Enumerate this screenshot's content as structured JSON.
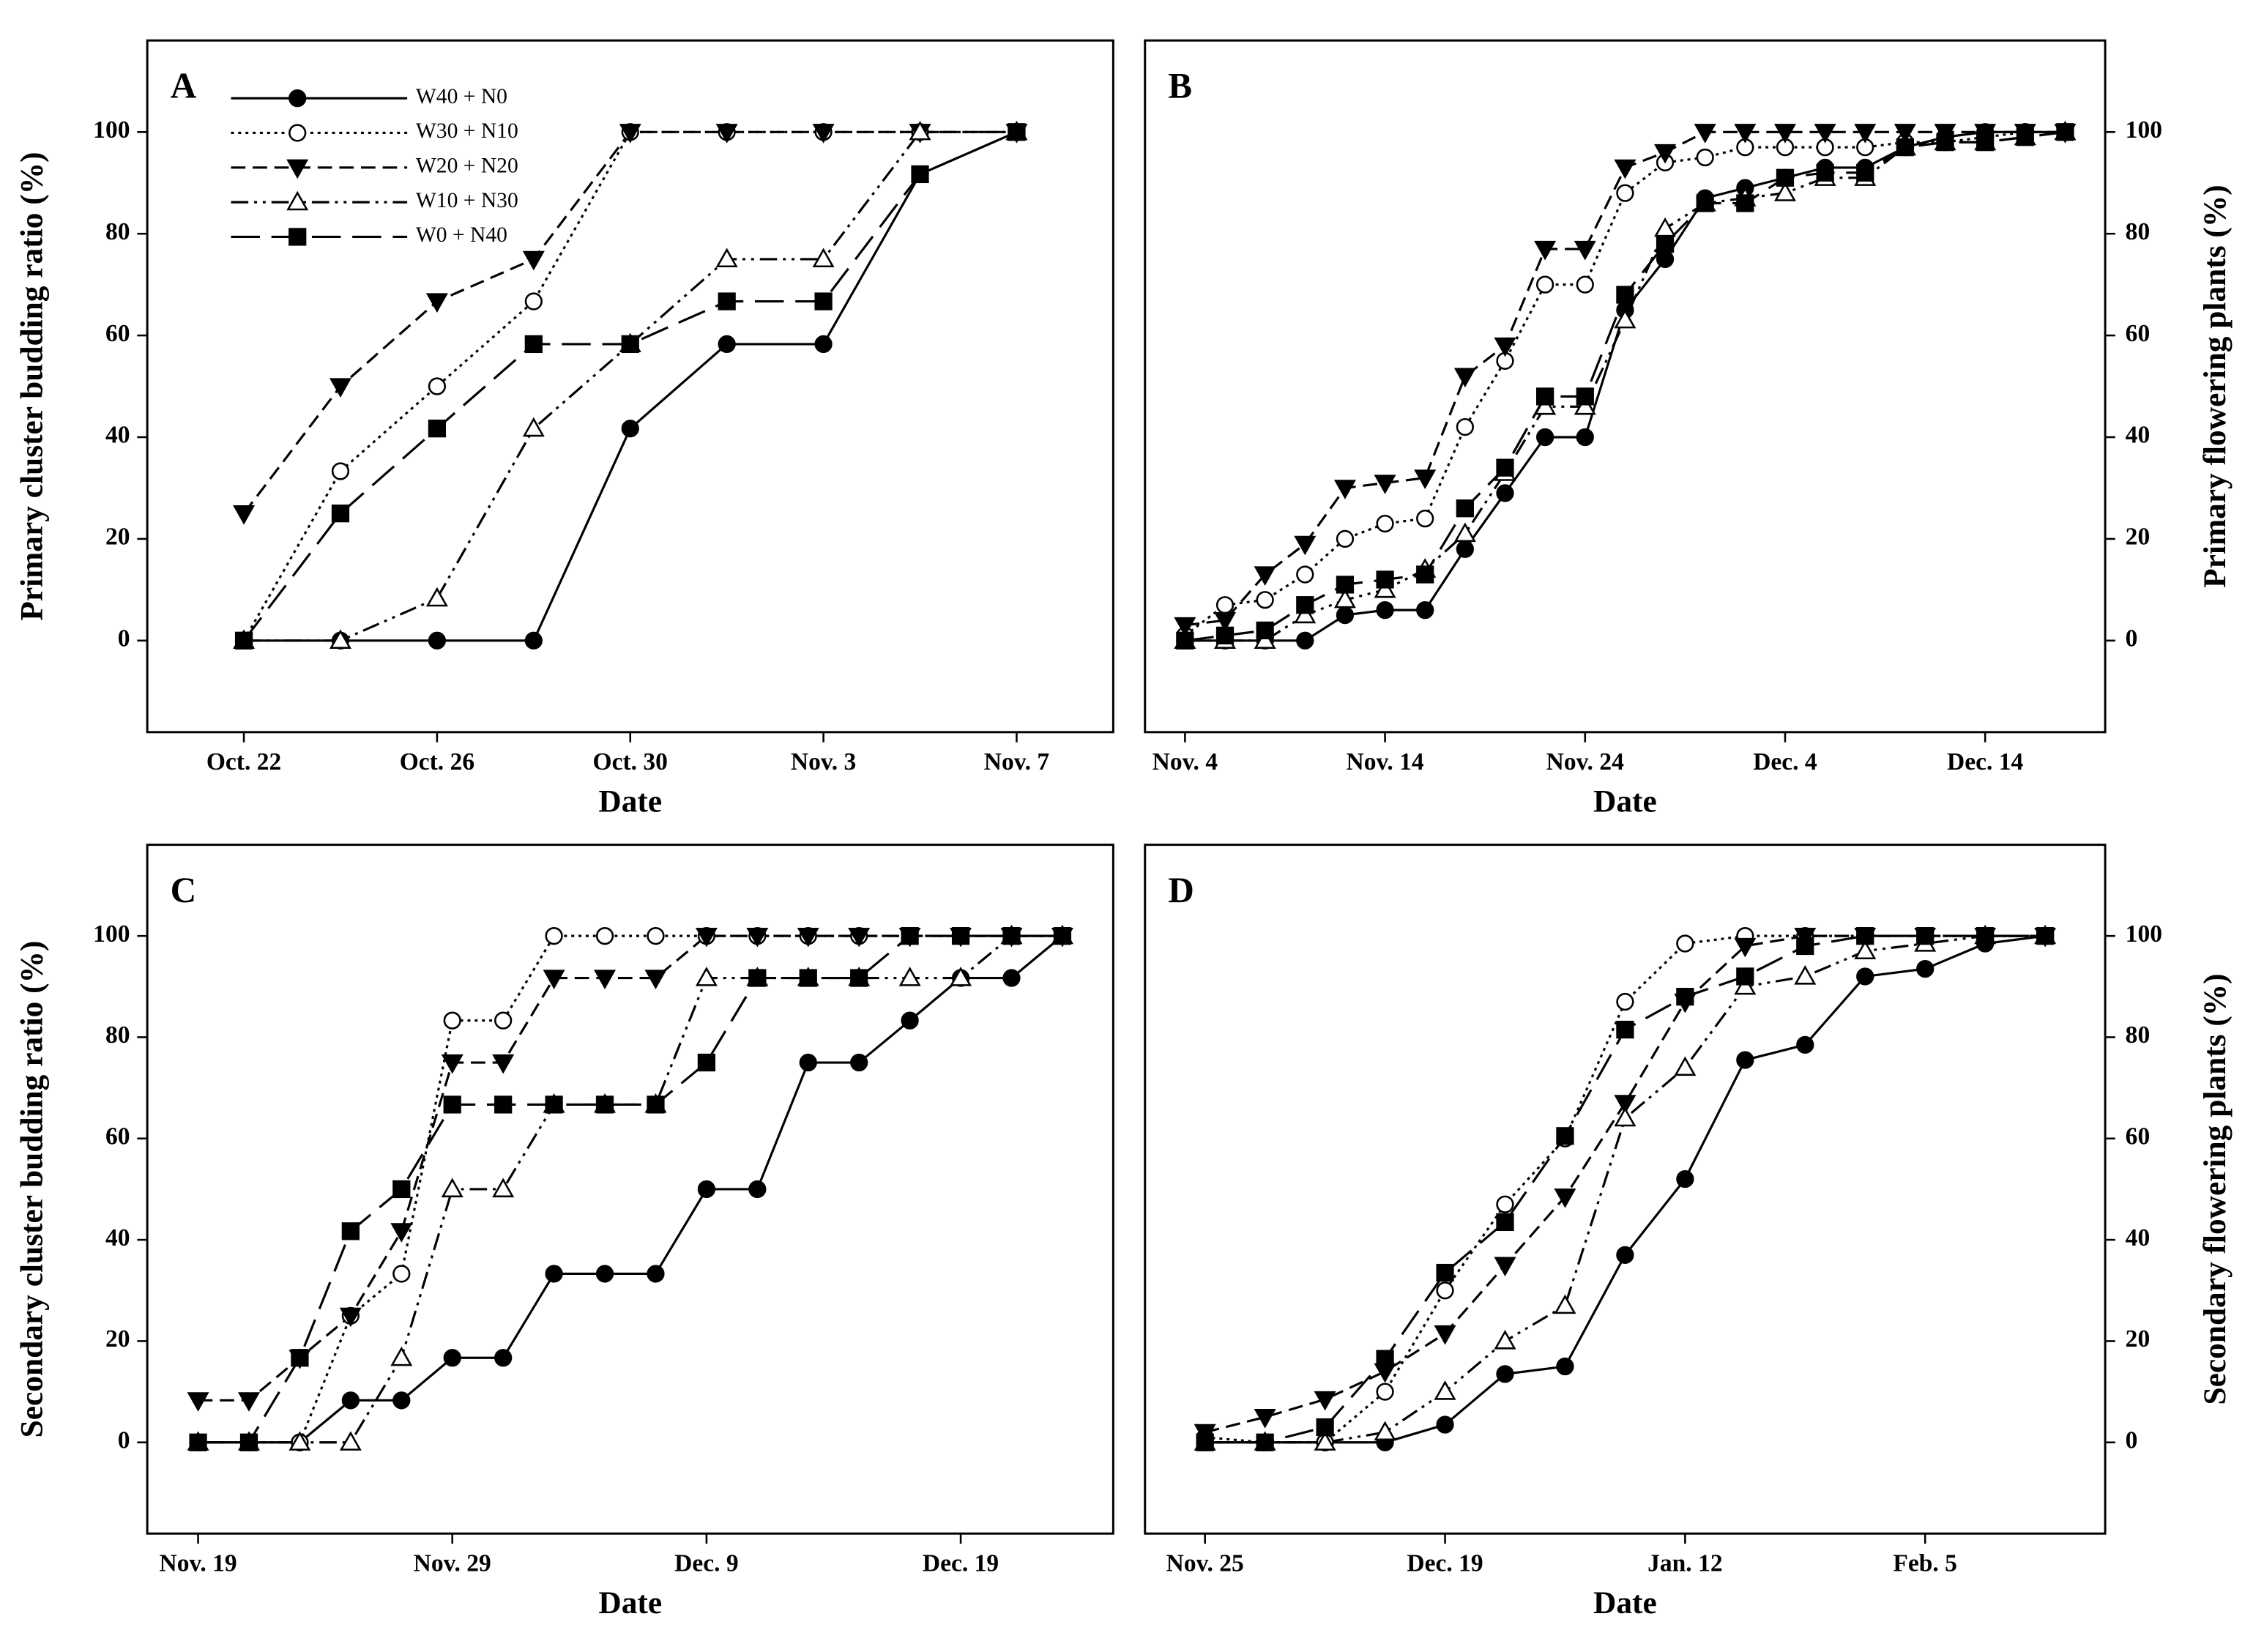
{
  "chart_data": [
    {
      "type": "line",
      "panel_label": "A",
      "y_label": "Primary cluster budding ratio (%)",
      "x_label": "Date",
      "y_axis_side": "left",
      "legend": true,
      "categories": [
        "Oct. 22",
        null,
        "Oct. 26",
        null,
        "Oct. 30",
        null,
        "Nov. 3",
        null,
        "Nov. 7"
      ],
      "ylim": [
        -18,
        118
      ],
      "yticks": [
        0,
        20,
        40,
        60,
        80,
        100
      ],
      "series": [
        {
          "name": "W40 + N0",
          "color": "#000000",
          "marker": "filled-circle",
          "line": "solid",
          "values": [
            0,
            0,
            0,
            0,
            41.7,
            58.3,
            58.3,
            91.7,
            100
          ]
        },
        {
          "name": "W30 + N10",
          "color": "#000000",
          "marker": "open-circle",
          "line": "dotted",
          "values": [
            0,
            33.3,
            50,
            66.7,
            100,
            100,
            100,
            100,
            100
          ]
        },
        {
          "name": "W20 + N20",
          "color": "#000000",
          "marker": "filled-triangle-down",
          "line": "dashed",
          "values": [
            25,
            50,
            66.7,
            75,
            100,
            100,
            100,
            100,
            100
          ]
        },
        {
          "name": "W10 + N30",
          "color": "#000000",
          "marker": "open-triangle-up",
          "line": "dash-dot-dot",
          "values": [
            0,
            0,
            8.3,
            41.7,
            58.3,
            75,
            75,
            100,
            100
          ]
        },
        {
          "name": "W0 + N40",
          "color": "#000000",
          "marker": "filled-square",
          "line": "long-dash",
          "values": [
            0,
            25,
            41.7,
            58.3,
            58.3,
            66.7,
            66.7,
            91.7,
            100
          ]
        }
      ]
    },
    {
      "type": "line",
      "panel_label": "B",
      "y_label": "Primary flowering plants (%)",
      "x_label": "Date",
      "y_axis_side": "right",
      "legend": false,
      "categories": [
        "Nov. 4",
        null,
        null,
        null,
        null,
        "Nov. 14",
        null,
        null,
        null,
        null,
        "Nov. 24",
        null,
        null,
        null,
        null,
        "Dec. 4",
        null,
        null,
        null,
        null,
        "Dec. 14",
        null,
        null
      ],
      "ylim": [
        -18,
        118
      ],
      "yticks": [
        0,
        20,
        40,
        60,
        80,
        100
      ],
      "series": [
        {
          "color": "#000000",
          "marker": "filled-circle",
          "line": "solid",
          "values": [
            0,
            0,
            0,
            0,
            5,
            6,
            6,
            18,
            29,
            40,
            40,
            65,
            75,
            87,
            89,
            91,
            93,
            93,
            97,
            99,
            100,
            100,
            100
          ]
        },
        {
          "color": "#000000",
          "marker": "open-circle",
          "line": "dotted",
          "values": [
            1,
            7,
            8,
            13,
            20,
            23,
            24,
            42,
            55,
            70,
            70,
            88,
            94,
            95,
            97,
            97,
            97,
            97,
            98,
            98,
            99,
            100,
            100
          ]
        },
        {
          "color": "#000000",
          "marker": "filled-triangle-down",
          "line": "dashed",
          "values": [
            3,
            4,
            13,
            19,
            30,
            31,
            32,
            52,
            58,
            77,
            77,
            93,
            96,
            100,
            100,
            100,
            100,
            100,
            100,
            100,
            100,
            100,
            100
          ]
        },
        {
          "color": "#000000",
          "marker": "open-triangle-up",
          "line": "dash-dot-dot",
          "values": [
            0,
            0,
            0,
            5,
            8,
            10,
            14,
            21,
            33,
            46,
            46,
            63,
            81,
            86,
            87,
            88,
            91,
            91,
            97,
            98,
            98,
            99,
            100
          ]
        },
        {
          "color": "#000000",
          "marker": "filled-square",
          "line": "long-dash",
          "values": [
            0,
            1,
            2,
            7,
            11,
            12,
            13,
            26,
            34,
            48,
            48,
            68,
            78,
            86,
            86,
            91,
            92,
            92,
            97,
            98,
            98,
            99,
            100
          ]
        }
      ]
    },
    {
      "type": "line",
      "panel_label": "C",
      "y_label": "Secondary cluster budding ratio (%)",
      "x_label": "Date",
      "y_axis_side": "left",
      "legend": false,
      "categories": [
        "Nov. 19",
        null,
        null,
        null,
        null,
        "Nov. 29",
        null,
        null,
        null,
        null,
        "Dec. 9",
        null,
        null,
        null,
        null,
        "Dec. 19",
        null,
        null
      ],
      "ylim": [
        -18,
        118
      ],
      "yticks": [
        0,
        20,
        40,
        60,
        80,
        100
      ],
      "series": [
        {
          "color": "#000000",
          "marker": "filled-circle",
          "line": "solid",
          "values": [
            0,
            0,
            0,
            8.3,
            8.3,
            16.7,
            16.7,
            33.3,
            33.3,
            33.3,
            50,
            50,
            75,
            75,
            83.3,
            91.7,
            91.7,
            100
          ]
        },
        {
          "color": "#000000",
          "marker": "open-circle",
          "line": "dotted",
          "values": [
            0,
            0,
            0,
            25,
            33.3,
            83.3,
            83.3,
            100,
            100,
            100,
            100,
            100,
            100,
            100,
            100,
            100,
            100,
            100
          ]
        },
        {
          "color": "#000000",
          "marker": "filled-triangle-down",
          "line": "dashed",
          "values": [
            8.3,
            8.3,
            16.7,
            25,
            41.7,
            75,
            75,
            91.7,
            91.7,
            91.7,
            100,
            100,
            100,
            100,
            100,
            100,
            100,
            100
          ]
        },
        {
          "color": "#000000",
          "marker": "open-triangle-up",
          "line": "dash-dot-dot",
          "values": [
            0,
            0,
            0,
            0,
            16.7,
            50,
            50,
            66.7,
            66.7,
            66.7,
            91.7,
            91.7,
            91.7,
            91.7,
            91.7,
            91.7,
            100,
            100
          ]
        },
        {
          "color": "#000000",
          "marker": "filled-square",
          "line": "long-dash",
          "values": [
            0,
            0,
            16.7,
            41.7,
            50,
            66.7,
            66.7,
            66.7,
            66.7,
            66.7,
            75,
            91.7,
            91.7,
            91.7,
            100,
            100,
            100,
            100
          ]
        }
      ]
    },
    {
      "type": "line",
      "panel_label": "D",
      "y_label": "Secondary flowering plants (%)",
      "x_label": "Date",
      "y_axis_side": "right",
      "legend": false,
      "categories": [
        "Nov. 25",
        null,
        null,
        null,
        "Dec. 19",
        null,
        null,
        null,
        "Jan. 12",
        null,
        null,
        null,
        "Feb. 5",
        null,
        null
      ],
      "ylim": [
        -18,
        118
      ],
      "yticks": [
        0,
        20,
        40,
        60,
        80,
        100
      ],
      "series": [
        {
          "color": "#000000",
          "marker": "filled-circle",
          "line": "solid",
          "values": [
            0,
            0,
            0,
            0,
            3.5,
            13.5,
            15,
            37,
            52,
            75.5,
            78.5,
            92,
            93.5,
            98.5,
            100
          ]
        },
        {
          "color": "#000000",
          "marker": "open-circle",
          "line": "dotted",
          "values": [
            1,
            0,
            0,
            10,
            30,
            47,
            60,
            87,
            98.5,
            100,
            100,
            100,
            100,
            100,
            100
          ]
        },
        {
          "color": "#000000",
          "marker": "filled-triangle-down",
          "line": "dashed",
          "values": [
            2,
            5,
            8.5,
            14,
            21.5,
            35,
            48.5,
            67,
            87,
            98,
            100,
            100,
            100,
            100,
            100
          ]
        },
        {
          "color": "#000000",
          "marker": "open-triangle-up",
          "line": "dash-dot-dot",
          "values": [
            0,
            0,
            0,
            2,
            10,
            20,
            27,
            64,
            74,
            90,
            92,
            97,
            98.5,
            100,
            100
          ]
        },
        {
          "color": "#000000",
          "marker": "filled-square",
          "line": "long-dash",
          "values": [
            0,
            0,
            3,
            16.5,
            33.5,
            43.5,
            60.5,
            81.5,
            88,
            92,
            98,
            100,
            100,
            100,
            100
          ]
        }
      ]
    }
  ]
}
